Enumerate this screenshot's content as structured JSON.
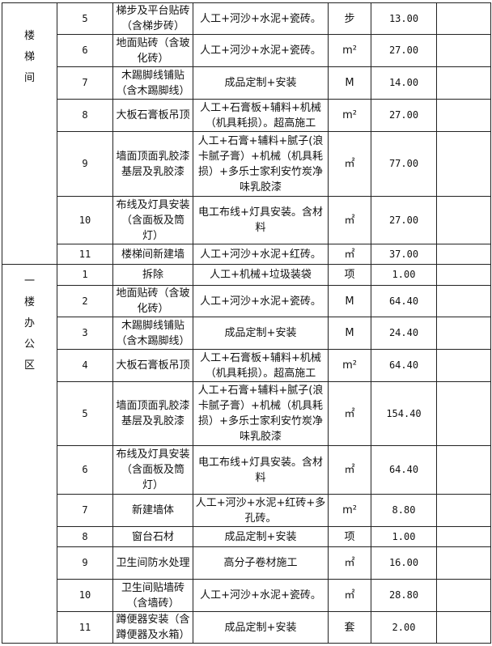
{
  "sections": [
    {
      "name": "楼梯间",
      "rows": [
        {
          "no": "5",
          "item": "梯步及平台贴砖（含梯步砖）",
          "desc": "人工+河沙+水泥+瓷砖。",
          "unit": "步",
          "qty": "13.00",
          "h": 39
        },
        {
          "no": "6",
          "item": "地面贴砖（含玻化砖）",
          "desc": "人工+河沙+水泥+瓷砖。",
          "unit": "m²",
          "qty": "27.00",
          "h": 40
        },
        {
          "no": "7",
          "item": "木踢脚线铺贴（含木踢脚线）",
          "desc": "成品定制+安装",
          "unit": "M",
          "qty": "14.00",
          "h": 40
        },
        {
          "no": "8",
          "item": "大板石膏板吊顶",
          "desc": "人工+石膏板+辅料+机械（机具耗损）。超高施工",
          "unit": "m²",
          "qty": "27.00",
          "h": 40
        },
        {
          "no": "9",
          "item": "墙面顶面乳胶漆基层及乳胶漆",
          "desc": "人工+石膏+辅料+腻子(浪卡腻子膏）+机械（机具耗损）+多乐士家利安竹炭净味乳胶漆",
          "unit": "㎡",
          "qty": "77.00",
          "h": 80
        },
        {
          "no": "10",
          "item": "布线及灯具安装（含面板及筒灯）",
          "desc": "电工布线+灯具安装。含材料",
          "unit": "㎡",
          "qty": "27.00",
          "h": 59
        },
        {
          "no": "11",
          "item": "楼梯间新建墙",
          "desc": "人工+河沙+水泥+红砖。",
          "unit": "㎡",
          "qty": "37.00",
          "h": 25
        }
      ]
    },
    {
      "name": "一楼办公区",
      "rows": [
        {
          "no": "1",
          "item": "拆除",
          "desc": "人工+机械+垃圾装袋",
          "unit": "项",
          "qty": "1.00",
          "h": 26
        },
        {
          "no": "2",
          "item": "地面贴砖（含玻化砖）",
          "desc": "人工+河沙+水泥+瓷砖。",
          "unit": "M",
          "qty": "64.40",
          "h": 39
        },
        {
          "no": "3",
          "item": "木踢脚线铺贴（含木踢脚线）",
          "desc": "成品定制+安装",
          "unit": "M",
          "qty": "24.40",
          "h": 40
        },
        {
          "no": "4",
          "item": "大板石膏板吊顶",
          "desc": "人工+石膏板+辅料+机械（机具耗损）。超高施工",
          "unit": "m²",
          "qty": "64.40",
          "h": 40
        },
        {
          "no": "5",
          "item": "墙面顶面乳胶漆基层及乳胶漆",
          "desc": "人工+石膏+辅料+腻子(浪卡腻子膏）+机械（机具耗损）+多乐士家利安竹炭净味乳胶漆",
          "unit": "㎡",
          "qty": "154.40",
          "h": 79
        },
        {
          "no": "6",
          "item": "布线及灯具安装（含面板及筒灯）",
          "desc": "电工布线+灯具安装。含材料",
          "unit": "㎡",
          "qty": "64.40",
          "h": 60
        },
        {
          "no": "7",
          "item": "新建墙体",
          "desc": "人工+河沙+水泥+红砖+多孔砖。",
          "unit": "m²",
          "qty": "8.80",
          "h": 40
        },
        {
          "no": "8",
          "item": "窗台石材",
          "desc": "成品定制+安装",
          "unit": "项",
          "qty": "1.00",
          "h": 25
        },
        {
          "no": "9",
          "item": "卫生间防水处理",
          "desc": "高分子卷材施工",
          "unit": "㎡",
          "qty": "16.00",
          "h": 40
        },
        {
          "no": "10",
          "item": "卫生间贴墙砖（含墙砖）",
          "desc": "人工+河沙+水泥+瓷砖。",
          "unit": "㎡",
          "qty": "28.80",
          "h": 40
        },
        {
          "no": "11",
          "item": "蹲便器安装（含蹲便器及水箱）",
          "desc": "成品定制+安装",
          "unit": "套",
          "qty": "2.00",
          "h": 39
        }
      ]
    }
  ]
}
